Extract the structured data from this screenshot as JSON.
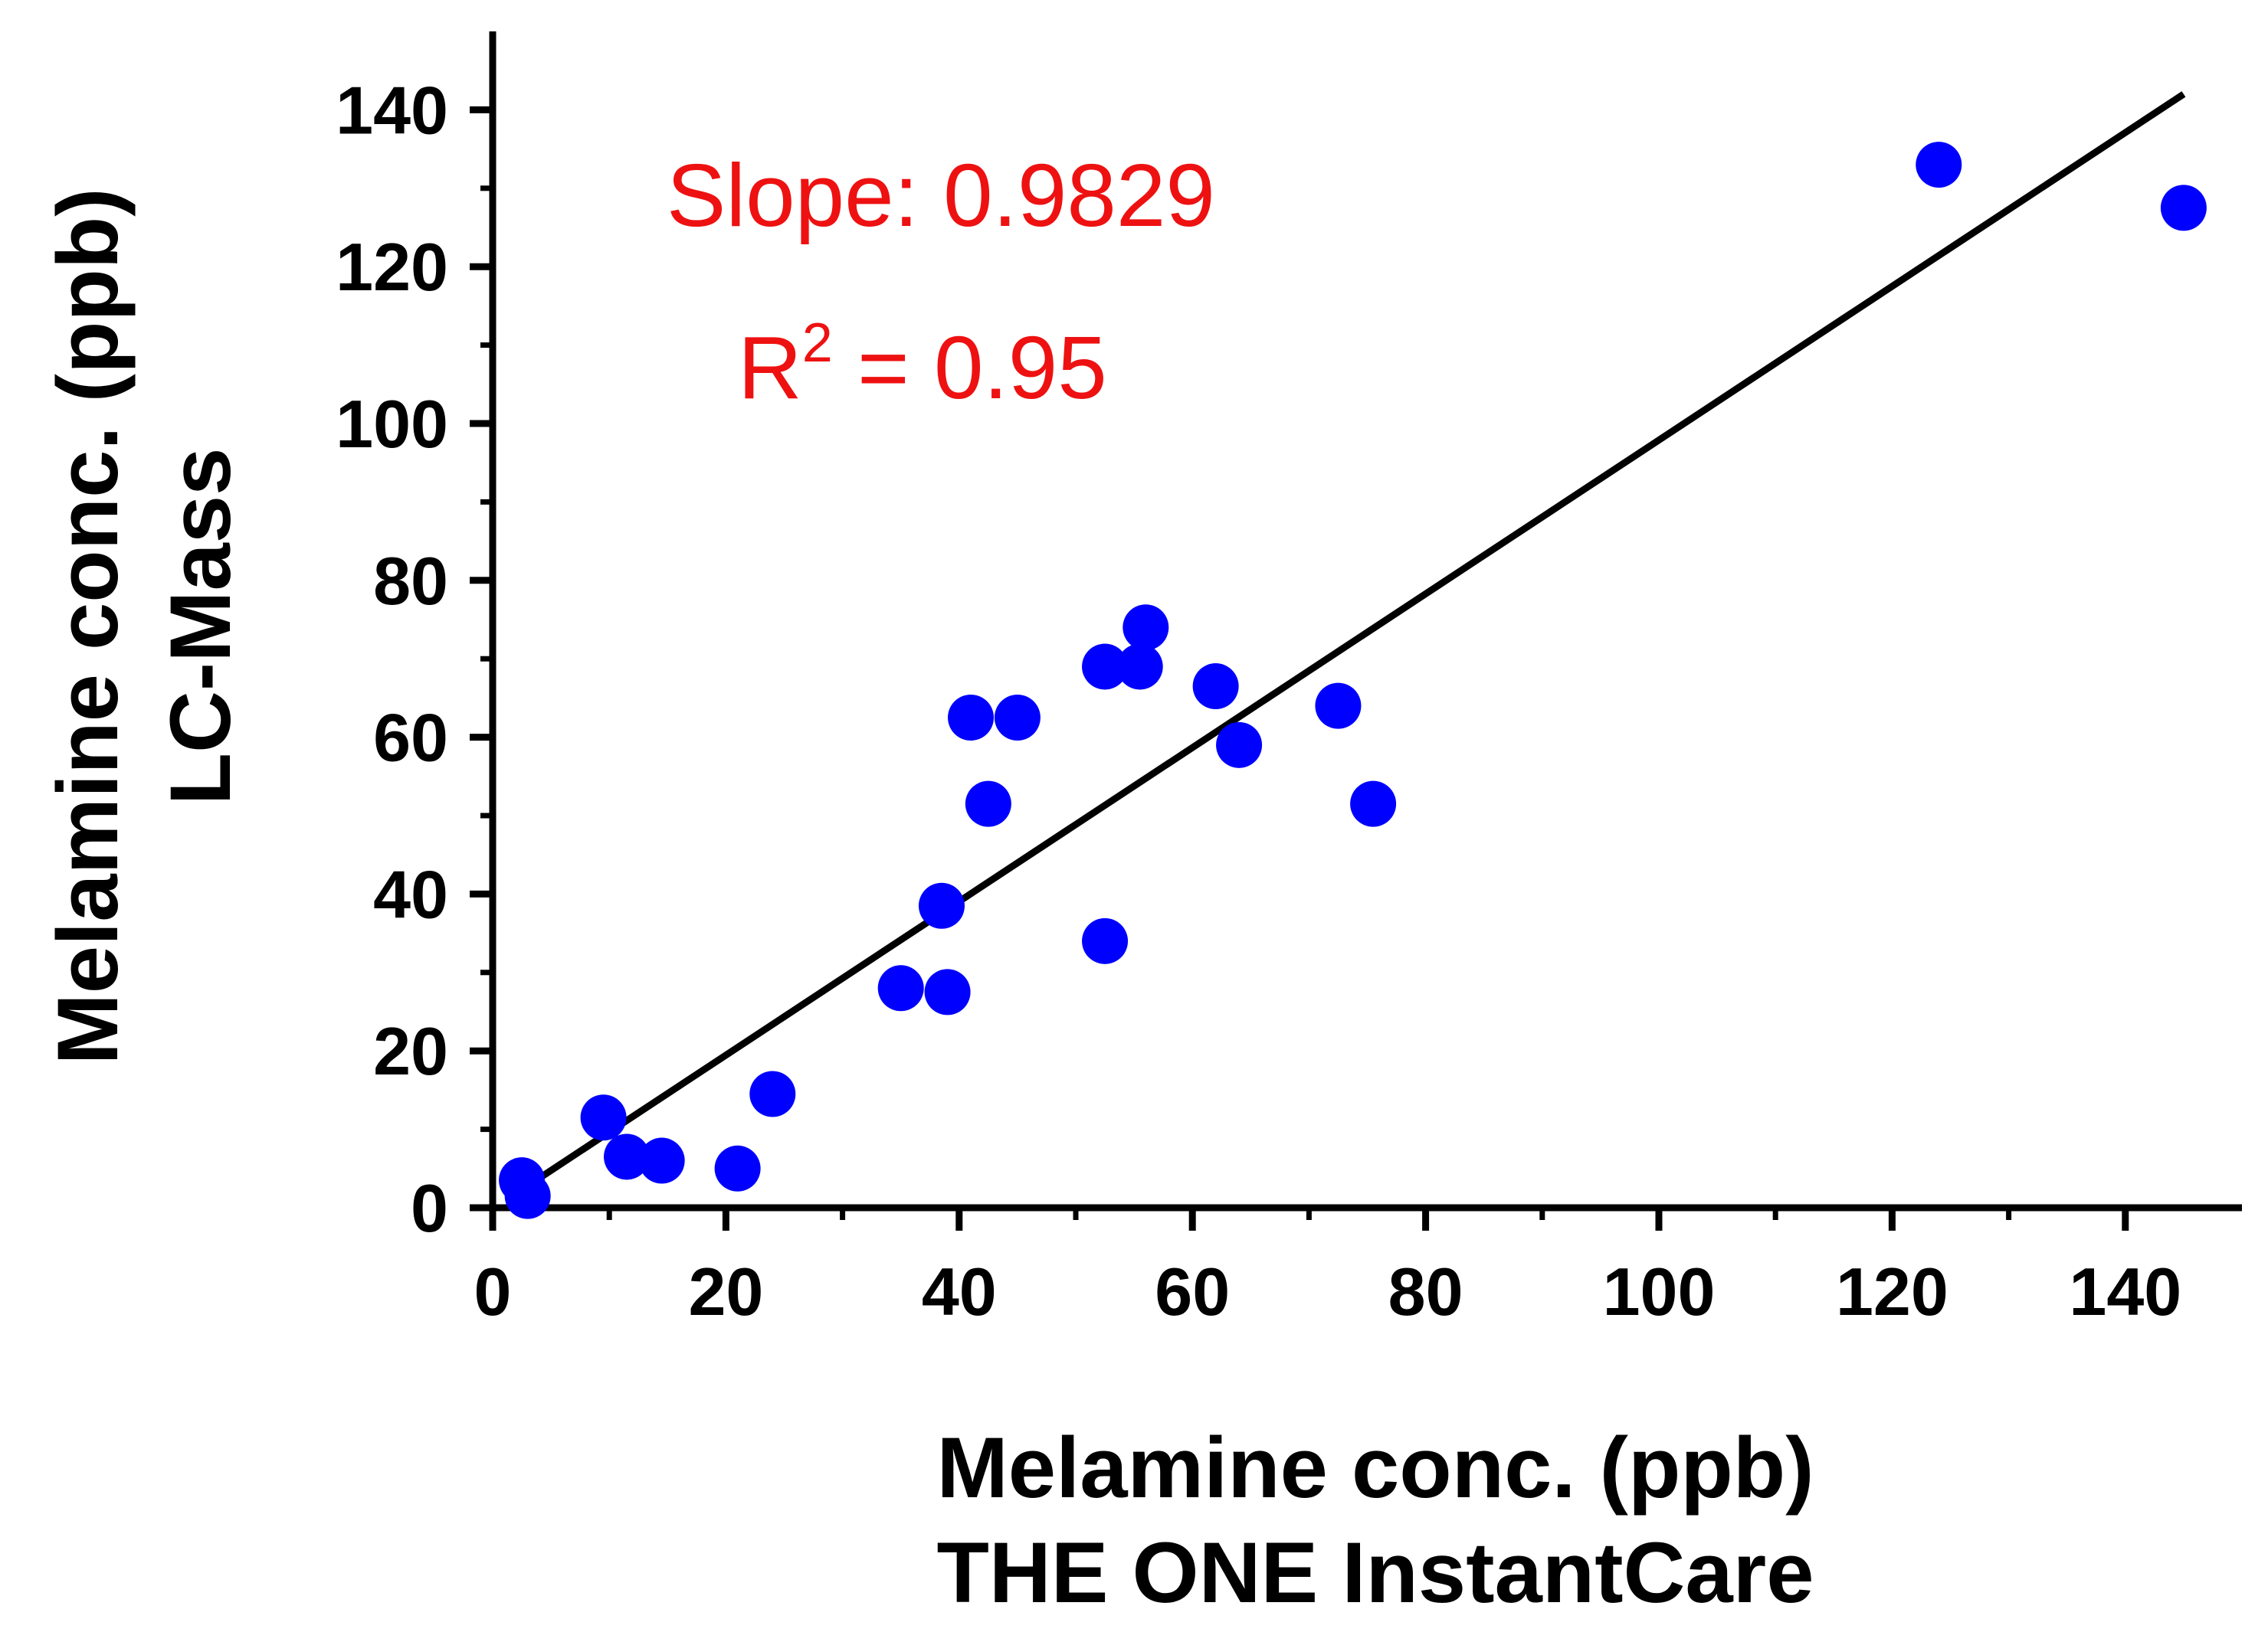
{
  "chart_data": {
    "type": "scatter",
    "xlim": [
      0,
      150
    ],
    "ylim": [
      0,
      150
    ],
    "x_ticks": [
      0,
      20,
      40,
      60,
      80,
      100,
      120,
      140
    ],
    "y_ticks": [
      0,
      20,
      40,
      60,
      80,
      100,
      120,
      140
    ],
    "x_tick_labels": [
      "0",
      "20",
      "40",
      "60",
      "80",
      "100",
      "120",
      "140"
    ],
    "y_tick_labels": [
      "0",
      "20",
      "40",
      "60",
      "80",
      "100",
      "120",
      "140"
    ],
    "xlabel_line1": "Melamine conc. (ppb)",
    "xlabel_line2": "THE ONE InstantCare",
    "ylabel_line1": "Melamine conc. (ppb)",
    "ylabel_line2": "LC-Mass",
    "grid": false,
    "marker_color": "#0000ff",
    "line_color": "#000000",
    "annotation_color": "#ee1111",
    "slope_text": "Slope: 0.9829",
    "r2_prefix": "R",
    "r2_superscript": "2",
    "r2_suffix": " = 0.95",
    "fit_line": {
      "x": [
        2.5,
        145
      ],
      "y": [
        2.3,
        142
      ]
    },
    "points": [
      {
        "x": 2.5,
        "y": 3.5
      },
      {
        "x": 3.0,
        "y": 1.5
      },
      {
        "x": 9.5,
        "y": 11.5
      },
      {
        "x": 11.5,
        "y": 6.5
      },
      {
        "x": 14.5,
        "y": 6.0
      },
      {
        "x": 21.0,
        "y": 5.0
      },
      {
        "x": 24.0,
        "y": 14.5
      },
      {
        "x": 35.0,
        "y": 28.0
      },
      {
        "x": 38.5,
        "y": 38.5
      },
      {
        "x": 39.0,
        "y": 27.5
      },
      {
        "x": 41.0,
        "y": 62.5
      },
      {
        "x": 42.5,
        "y": 51.5
      },
      {
        "x": 45.0,
        "y": 62.5
      },
      {
        "x": 52.5,
        "y": 69.0
      },
      {
        "x": 52.5,
        "y": 34.0
      },
      {
        "x": 55.5,
        "y": 69.0
      },
      {
        "x": 56.0,
        "y": 74.0
      },
      {
        "x": 62.0,
        "y": 66.5
      },
      {
        "x": 64.0,
        "y": 59.0
      },
      {
        "x": 72.5,
        "y": 64.0
      },
      {
        "x": 75.5,
        "y": 51.5
      },
      {
        "x": 124.0,
        "y": 133.0
      },
      {
        "x": 145.0,
        "y": 127.5
      }
    ]
  }
}
